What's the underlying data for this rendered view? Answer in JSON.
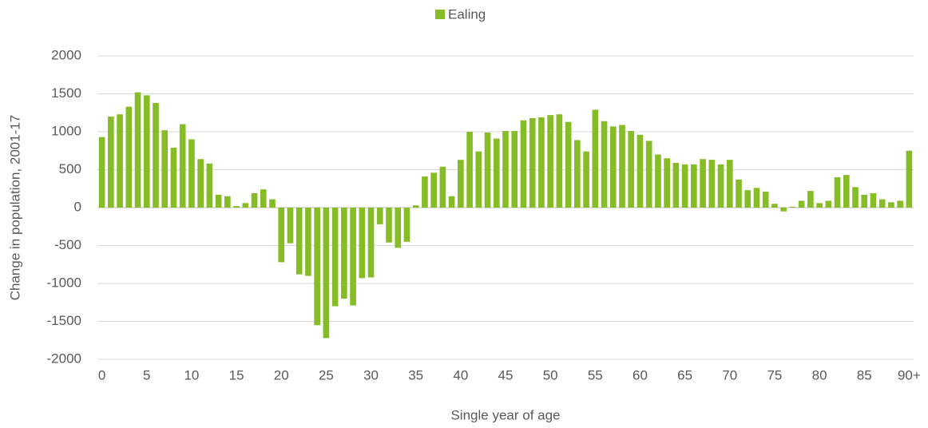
{
  "chart_data": {
    "type": "bar",
    "x_label": "Single year of age",
    "y_label": "Change in population, 2001-17",
    "categories": [
      "0",
      null,
      null,
      null,
      null,
      "5",
      null,
      null,
      null,
      null,
      "10",
      null,
      null,
      null,
      null,
      "15",
      null,
      null,
      null,
      null,
      "20",
      null,
      null,
      null,
      null,
      "25",
      null,
      null,
      null,
      null,
      "30",
      null,
      null,
      null,
      null,
      "35",
      null,
      null,
      null,
      null,
      "40",
      null,
      null,
      null,
      null,
      "45",
      null,
      null,
      null,
      null,
      "50",
      null,
      null,
      null,
      null,
      "55",
      null,
      null,
      null,
      null,
      "60",
      null,
      null,
      null,
      null,
      "65",
      null,
      null,
      null,
      null,
      "70",
      null,
      null,
      null,
      null,
      "75",
      null,
      null,
      null,
      null,
      "80",
      null,
      null,
      null,
      null,
      "85",
      null,
      null,
      null,
      null,
      "90+"
    ],
    "series": [
      {
        "name": "Ealing",
        "color": "#86bc25",
        "values": [
          930,
          1200,
          1230,
          1330,
          1520,
          1480,
          1380,
          1020,
          790,
          1100,
          900,
          640,
          580,
          170,
          150,
          20,
          60,
          190,
          240,
          110,
          -720,
          -470,
          -880,
          -900,
          -1550,
          -1720,
          -1300,
          -1200,
          -1290,
          -930,
          -920,
          -220,
          -460,
          -530,
          -450,
          30,
          410,
          460,
          540,
          150,
          630,
          1000,
          740,
          990,
          910,
          1010,
          1010,
          1150,
          1180,
          1190,
          1220,
          1230,
          1130,
          890,
          740,
          1290,
          1140,
          1070,
          1090,
          1010,
          960,
          880,
          700,
          650,
          590,
          570,
          570,
          640,
          630,
          570,
          630,
          370,
          230,
          260,
          210,
          50,
          -50,
          10,
          90,
          220,
          60,
          90,
          400,
          430,
          270,
          170,
          190,
          110,
          70,
          90,
          750
        ]
      }
    ],
    "ylim": [
      -2000,
      2000
    ],
    "yticks": [
      -2000,
      -1500,
      -1000,
      -500,
      0,
      500,
      1000,
      1500,
      2000
    ],
    "grid": true,
    "legend": "top"
  }
}
